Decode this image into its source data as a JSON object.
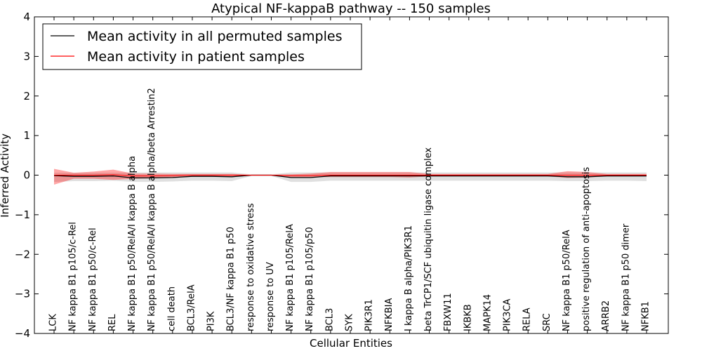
{
  "chart_data": {
    "type": "line",
    "title": "Atypical NF-kappaB pathway -- 150 samples",
    "xlabel": "Cellular Entities",
    "ylabel": "Inferred Activity",
    "ylim": [
      -4,
      4
    ],
    "yticks": [
      -4,
      -3,
      -2,
      -1,
      0,
      1,
      2,
      3,
      4
    ],
    "grid": false,
    "legend_position": "top-left",
    "categories": [
      "LCK",
      "NF kappa B1 p105/c-Rel",
      "NF kappa B1 p50/c-Rel",
      "REL",
      "NF kappa B1 p50/RelA/I kappa B alpha",
      "NF kappa B1 p50/RelA/I kappa B alpha/beta Arrestin2",
      "cell death",
      "BCL3/RelA",
      "PI3K",
      "BCL3/NF kappa B1 p50",
      "response to oxidative stress",
      "response to UV",
      "NF kappa B1 p105/RelA",
      "NF kappa B1 p105/p50",
      "BCL3",
      "SYK",
      "PIK3R1",
      "NFKBIA",
      "I kappa B alpha/PIK3R1",
      "beta TrCP1/SCF ubiquitin ligase complex",
      "FBXW11",
      "IKBKB",
      "MAPK14",
      "PIK3CA",
      "RELA",
      "SRC",
      "NF kappa B1 p50/RelA",
      "positive regulation of anti-apoptosis",
      "ARRB2",
      "NF kappa B1 p50 dimer",
      "NFKB1"
    ],
    "series": [
      {
        "name": "Mean activity in all permuted samples",
        "color": "#000000",
        "values": [
          -0.01,
          -0.03,
          -0.03,
          -0.02,
          -0.07,
          -0.07,
          -0.06,
          -0.03,
          -0.03,
          -0.04,
          0.0,
          0.0,
          -0.06,
          -0.06,
          -0.02,
          -0.02,
          -0.02,
          -0.02,
          -0.02,
          -0.02,
          -0.02,
          -0.02,
          -0.02,
          -0.02,
          -0.02,
          -0.02,
          -0.04,
          -0.04,
          -0.02,
          -0.02,
          -0.02
        ],
        "band_low": [
          -0.17,
          -0.15,
          -0.15,
          -0.14,
          -0.17,
          -0.17,
          -0.16,
          -0.14,
          -0.14,
          -0.15,
          -0.02,
          -0.02,
          -0.17,
          -0.17,
          -0.14,
          -0.14,
          -0.14,
          -0.14,
          -0.14,
          -0.14,
          -0.14,
          -0.14,
          -0.14,
          -0.14,
          -0.14,
          -0.14,
          -0.15,
          -0.15,
          -0.14,
          -0.14,
          -0.15
        ],
        "band_high": [
          0.06,
          0.06,
          0.06,
          0.06,
          0.07,
          0.07,
          0.07,
          0.07,
          0.07,
          0.07,
          0.02,
          0.02,
          0.07,
          0.07,
          0.07,
          0.07,
          0.07,
          0.07,
          0.07,
          0.07,
          0.07,
          0.07,
          0.07,
          0.07,
          0.07,
          0.07,
          0.07,
          0.07,
          0.07,
          0.07,
          0.07
        ],
        "band_color": "#e0e0e0"
      },
      {
        "name": "Mean activity in patient samples",
        "color": "#ff0000",
        "values": [
          0.0,
          0.0,
          0.0,
          0.01,
          -0.02,
          -0.02,
          -0.01,
          0.0,
          0.0,
          0.0,
          0.0,
          0.0,
          -0.01,
          -0.01,
          0.0,
          0.0,
          0.0,
          0.0,
          0.0,
          0.0,
          0.0,
          0.0,
          0.0,
          0.0,
          0.0,
          0.0,
          0.0,
          0.0,
          0.0,
          0.0,
          0.0
        ],
        "band_low": [
          -0.24,
          -0.09,
          -0.09,
          -0.12,
          -0.09,
          -0.08,
          -0.06,
          -0.04,
          -0.04,
          -0.04,
          -0.01,
          -0.01,
          -0.05,
          -0.05,
          -0.05,
          -0.05,
          -0.05,
          -0.05,
          -0.06,
          -0.03,
          -0.03,
          -0.03,
          -0.03,
          -0.03,
          -0.03,
          -0.03,
          -0.07,
          -0.06,
          -0.03,
          -0.03,
          -0.03
        ],
        "band_high": [
          0.16,
          0.06,
          0.09,
          0.14,
          0.04,
          0.04,
          0.03,
          0.03,
          0.03,
          0.03,
          0.01,
          0.01,
          0.02,
          0.04,
          0.08,
          0.08,
          0.08,
          0.08,
          0.08,
          0.03,
          0.03,
          0.03,
          0.03,
          0.03,
          0.03,
          0.03,
          0.1,
          0.08,
          0.03,
          0.03,
          0.03
        ],
        "band_color": "#ff0000",
        "band_opacity": 0.35
      }
    ]
  }
}
